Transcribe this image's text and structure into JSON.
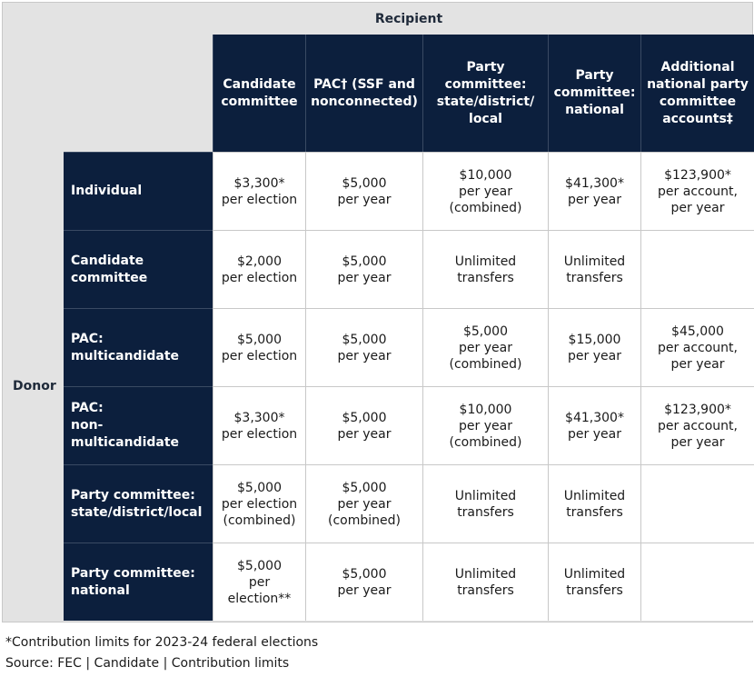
{
  "header": {
    "recipient_label": "Recipient",
    "donor_label": "Donor"
  },
  "columns": [
    "Candidate\ncommittee",
    "PAC† (SSF and\nnonconnected)",
    "Party\ncommittee:\nstate/district/\nlocal",
    "Party\ncommittee:\nnational",
    "Additional\nnational party\ncommittee\naccounts‡"
  ],
  "rows": [
    {
      "label": "Individual",
      "cells": [
        "$3,300*\nper election",
        "$5,000\nper year",
        "$10,000\nper year\n(combined)",
        "$41,300*\nper year",
        "$123,900*\nper account,\nper year"
      ]
    },
    {
      "label": "Candidate\ncommittee",
      "cells": [
        "$2,000\nper election",
        "$5,000\nper year",
        "Unlimited\ntransfers",
        "Unlimited\ntransfers",
        ""
      ]
    },
    {
      "label": "PAC:\nmulticandidate",
      "cells": [
        "$5,000\nper election",
        "$5,000\nper year",
        "$5,000\nper year\n(combined)",
        "$15,000\nper year",
        "$45,000\nper account,\nper year"
      ]
    },
    {
      "label": "PAC:\nnon-\nmulticandidate",
      "cells": [
        "$3,300*\nper election",
        "$5,000\nper year",
        "$10,000\nper year\n(combined)",
        "$41,300*\nper year",
        "$123,900*\nper account,\nper year"
      ]
    },
    {
      "label": "Party committee:\nstate/district/local",
      "cells": [
        "$5,000\nper election\n(combined)",
        "$5,000\nper year\n(combined)",
        "Unlimited\ntransfers",
        "Unlimited\ntransfers",
        ""
      ]
    },
    {
      "label": "Party committee:\nnational",
      "cells": [
        "$5,000\nper election**",
        "$5,000\nper year",
        "Unlimited\ntransfers",
        "Unlimited\ntransfers",
        ""
      ]
    }
  ],
  "footer": {
    "note": "*Contribution limits for 2023-24 federal elections",
    "source": "Source: FEC | Candidate | Contribution limits"
  },
  "colors": {
    "navy": "#0c1f3d",
    "gray": "#e3e3e3",
    "white": "#ffffff"
  }
}
